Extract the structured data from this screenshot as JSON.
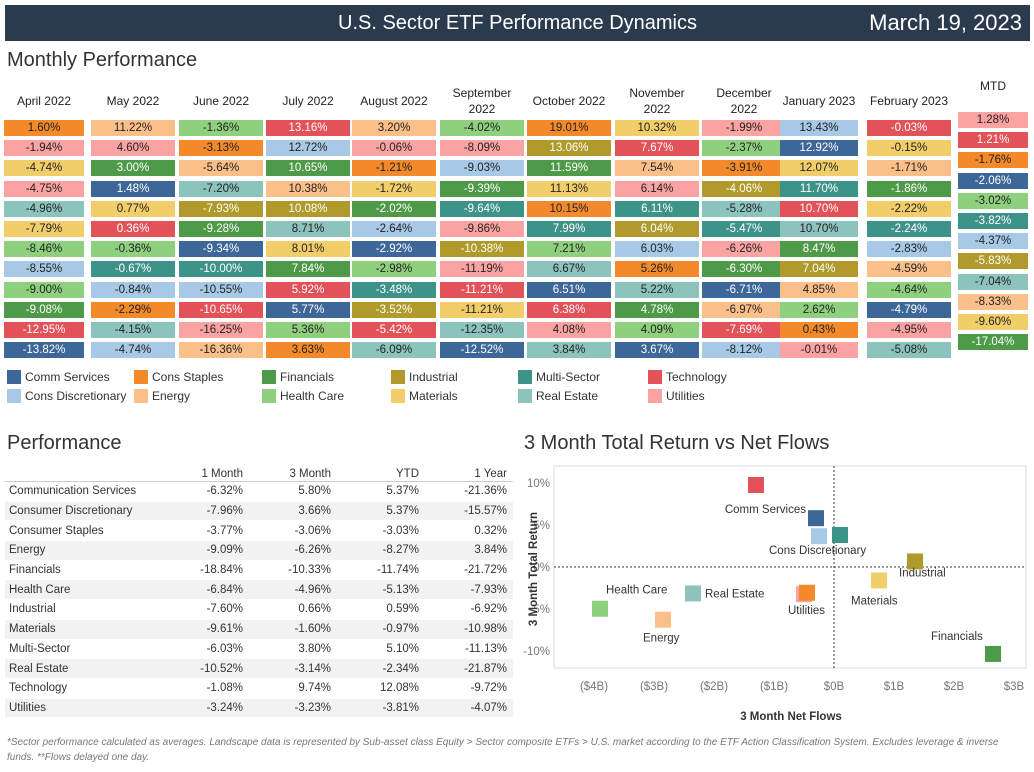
{
  "header": {
    "title": "U.S. Sector ETF Performance Dynamics",
    "date": "March 19, 2023"
  },
  "monthly": {
    "title": "Monthly Performance"
  },
  "colors": {
    "Comm Services": "#3d6699",
    "Cons Discretionary": "#a7c9e6",
    "Cons Staples": "#f28a2b",
    "Energy": "#fbbf8a",
    "Financials": "#4e9a48",
    "Health Care": "#8fd07f",
    "Industrial": "#b19a2c",
    "Materials": "#f2ce6b",
    "Multi-Sector": "#3e9389",
    "Real Estate": "#8cc3bd",
    "Technology": "#e15259",
    "Utilities": "#fba2a2"
  },
  "dark_text": [
    "Comm Services",
    "Financials",
    "Industrial",
    "Multi-Sector",
    "Technology"
  ],
  "months": [
    {
      "label": "April 2022",
      "cells": [
        [
          "1.60%",
          "Cons Staples"
        ],
        [
          "-1.94%",
          "Utilities"
        ],
        [
          "-4.74%",
          "Materials"
        ],
        [
          "-4.75%",
          "Utilities"
        ],
        [
          "-4.96%",
          "Real Estate"
        ],
        [
          "-7.79%",
          "Materials"
        ],
        [
          "-8.46%",
          "Health Care"
        ],
        [
          "-8.55%",
          "Cons Discretionary"
        ],
        [
          "-9.00%",
          "Health Care"
        ],
        [
          "-9.08%",
          "Financials"
        ],
        [
          "-12.95%",
          "Technology"
        ],
        [
          "-13.82%",
          "Comm Services"
        ]
      ]
    },
    {
      "label": "May 2022",
      "cells": [
        [
          "11.22%",
          "Energy"
        ],
        [
          "4.60%",
          "Utilities"
        ],
        [
          "3.00%",
          "Financials"
        ],
        [
          "1.48%",
          "Comm Services"
        ],
        [
          "0.77%",
          "Materials"
        ],
        [
          "0.36%",
          "Technology"
        ],
        [
          "-0.36%",
          "Health Care"
        ],
        [
          "-0.67%",
          "Multi-Sector"
        ],
        [
          "-0.84%",
          "Cons Discretionary"
        ],
        [
          "-2.29%",
          "Cons Staples"
        ],
        [
          "-4.15%",
          "Real Estate"
        ],
        [
          "-4.74%",
          "Cons Discretionary"
        ]
      ]
    },
    {
      "label": "June 2022",
      "cells": [
        [
          "-1.36%",
          "Health Care"
        ],
        [
          "-3.13%",
          "Cons Staples"
        ],
        [
          "-5.64%",
          "Energy"
        ],
        [
          "-7.20%",
          "Real Estate"
        ],
        [
          "-7.93%",
          "Industrial"
        ],
        [
          "-9.28%",
          "Financials"
        ],
        [
          "-9.34%",
          "Comm Services"
        ],
        [
          "-10.00%",
          "Multi-Sector"
        ],
        [
          "-10.55%",
          "Cons Discretionary"
        ],
        [
          "-10.65%",
          "Technology"
        ],
        [
          "-16.25%",
          "Utilities"
        ],
        [
          "-16.36%",
          "Energy"
        ]
      ]
    },
    {
      "label": "July 2022",
      "cells": [
        [
          "13.16%",
          "Technology"
        ],
        [
          "12.72%",
          "Cons Discretionary"
        ],
        [
          "10.65%",
          "Financials"
        ],
        [
          "10.38%",
          "Energy"
        ],
        [
          "10.08%",
          "Industrial"
        ],
        [
          "8.71%",
          "Real Estate"
        ],
        [
          "8.01%",
          "Materials"
        ],
        [
          "7.84%",
          "Financials"
        ],
        [
          "5.92%",
          "Technology"
        ],
        [
          "5.77%",
          "Comm Services"
        ],
        [
          "5.36%",
          "Health Care"
        ],
        [
          "3.63%",
          "Cons Staples"
        ]
      ]
    },
    {
      "label": "August 2022",
      "cells": [
        [
          "3.20%",
          "Energy"
        ],
        [
          "-0.06%",
          "Utilities"
        ],
        [
          "-1.21%",
          "Cons Staples"
        ],
        [
          "-1.72%",
          "Materials"
        ],
        [
          "-2.02%",
          "Financials"
        ],
        [
          "-2.64%",
          "Cons Discretionary"
        ],
        [
          "-2.92%",
          "Comm Services"
        ],
        [
          "-2.98%",
          "Health Care"
        ],
        [
          "-3.48%",
          "Multi-Sector"
        ],
        [
          "-3.52%",
          "Industrial"
        ],
        [
          "-5.42%",
          "Technology"
        ],
        [
          "-6.09%",
          "Real Estate"
        ]
      ]
    },
    {
      "label": "September 2022",
      "cells": [
        [
          "-4.02%",
          "Health Care"
        ],
        [
          "-8.09%",
          "Utilities"
        ],
        [
          "-9.03%",
          "Cons Discretionary"
        ],
        [
          "-9.39%",
          "Financials"
        ],
        [
          "-9.64%",
          "Multi-Sector"
        ],
        [
          "-9.86%",
          "Utilities"
        ],
        [
          "-10.38%",
          "Industrial"
        ],
        [
          "-11.19%",
          "Utilities"
        ],
        [
          "-11.21%",
          "Technology"
        ],
        [
          "-11.21%",
          "Materials"
        ],
        [
          "-12.35%",
          "Real Estate"
        ],
        [
          "-12.52%",
          "Comm Services"
        ]
      ]
    },
    {
      "label": "October 2022",
      "cells": [
        [
          "19.01%",
          "Cons Staples"
        ],
        [
          "13.06%",
          "Industrial"
        ],
        [
          "11.59%",
          "Financials"
        ],
        [
          "11.13%",
          "Materials"
        ],
        [
          "10.15%",
          "Cons Staples"
        ],
        [
          "7.99%",
          "Multi-Sector"
        ],
        [
          "7.21%",
          "Health Care"
        ],
        [
          "6.67%",
          "Real Estate"
        ],
        [
          "6.51%",
          "Comm Services"
        ],
        [
          "6.38%",
          "Technology"
        ],
        [
          "4.08%",
          "Utilities"
        ],
        [
          "3.84%",
          "Real Estate"
        ]
      ]
    },
    {
      "label": "November 2022",
      "cells": [
        [
          "10.32%",
          "Materials"
        ],
        [
          "7.67%",
          "Technology"
        ],
        [
          "7.54%",
          "Energy"
        ],
        [
          "6.14%",
          "Utilities"
        ],
        [
          "6.11%",
          "Multi-Sector"
        ],
        [
          "6.04%",
          "Industrial"
        ],
        [
          "6.03%",
          "Cons Discretionary"
        ],
        [
          "5.26%",
          "Cons Staples"
        ],
        [
          "5.22%",
          "Real Estate"
        ],
        [
          "4.78%",
          "Financials"
        ],
        [
          "4.09%",
          "Health Care"
        ],
        [
          "3.67%",
          "Comm Services"
        ]
      ]
    },
    {
      "label": "December 2022",
      "cells": [
        [
          "-1.99%",
          "Utilities"
        ],
        [
          "-2.37%",
          "Health Care"
        ],
        [
          "-3.91%",
          "Cons Staples"
        ],
        [
          "-4.06%",
          "Industrial"
        ],
        [
          "-5.28%",
          "Real Estate"
        ],
        [
          "-5.47%",
          "Multi-Sector"
        ],
        [
          "-6.26%",
          "Utilities"
        ],
        [
          "-6.30%",
          "Financials"
        ],
        [
          "-6.71%",
          "Comm Services"
        ],
        [
          "-6.97%",
          "Energy"
        ],
        [
          "-7.69%",
          "Technology"
        ],
        [
          "-8.12%",
          "Cons Discretionary"
        ]
      ]
    },
    {
      "label": "January 2023",
      "cells": [
        [
          "13.43%",
          "Cons Discretionary"
        ],
        [
          "12.92%",
          "Comm Services"
        ],
        [
          "12.07%",
          "Materials"
        ],
        [
          "11.70%",
          "Multi-Sector"
        ],
        [
          "10.70%",
          "Technology"
        ],
        [
          "10.70%",
          "Real Estate"
        ],
        [
          "8.47%",
          "Financials"
        ],
        [
          "7.04%",
          "Industrial"
        ],
        [
          "4.85%",
          "Energy"
        ],
        [
          "2.62%",
          "Health Care"
        ],
        [
          "0.43%",
          "Cons Staples"
        ],
        [
          "-0.01%",
          "Utilities"
        ]
      ]
    },
    {
      "label": "February 2023",
      "cells": [
        [
          "-0.03%",
          "Technology"
        ],
        [
          "-0.15%",
          "Materials"
        ],
        [
          "-1.71%",
          "Energy"
        ],
        [
          "-1.86%",
          "Financials"
        ],
        [
          "-2.22%",
          "Materials"
        ],
        [
          "-2.24%",
          "Multi-Sector"
        ],
        [
          "-2.83%",
          "Cons Discretionary"
        ],
        [
          "-4.59%",
          "Energy"
        ],
        [
          "-4.64%",
          "Health Care"
        ],
        [
          "-4.79%",
          "Comm Services"
        ],
        [
          "-4.95%",
          "Utilities"
        ],
        [
          "-5.08%",
          "Real Estate"
        ]
      ]
    },
    {
      "label": "MTD",
      "cells": [
        [
          "1.28%",
          "Utilities"
        ],
        [
          "1.21%",
          "Technology"
        ],
        [
          "-1.76%",
          "Cons Staples"
        ],
        [
          "-2.06%",
          "Comm Services"
        ],
        [
          "-3.02%",
          "Health Care"
        ],
        [
          "-3.82%",
          "Multi-Sector"
        ],
        [
          "-4.37%",
          "Cons Discretionary"
        ],
        [
          "-5.83%",
          "Industrial"
        ],
        [
          "-7.04%",
          "Real Estate"
        ],
        [
          "-8.33%",
          "Energy"
        ],
        [
          "-9.60%",
          "Materials"
        ],
        [
          "-17.04%",
          "Financials"
        ]
      ]
    }
  ],
  "legend": [
    "Comm Services",
    "Cons Staples",
    "Financials",
    "Industrial",
    "Multi-Sector",
    "Technology",
    "Cons Discretionary",
    "Energy",
    "Health Care",
    "Materials",
    "Real Estate",
    "Utilities"
  ],
  "performance": {
    "title": "Performance",
    "columns": [
      "1 Month",
      "3 Month",
      "YTD",
      "1 Year"
    ],
    "rows": [
      [
        "Communication Services",
        "-6.32%",
        "5.80%",
        "5.37%",
        "-21.36%"
      ],
      [
        "Consumer Discretionary",
        "-7.96%",
        "3.66%",
        "5.37%",
        "-15.57%"
      ],
      [
        "Consumer Staples",
        "-3.77%",
        "-3.06%",
        "-3.03%",
        "0.32%"
      ],
      [
        "Energy",
        "-9.09%",
        "-6.26%",
        "-8.27%",
        "3.84%"
      ],
      [
        "Financials",
        "-18.84%",
        "-10.33%",
        "-11.74%",
        "-21.72%"
      ],
      [
        "Health Care",
        "-6.84%",
        "-4.96%",
        "-5.13%",
        "-7.93%"
      ],
      [
        "Industrial",
        "-7.60%",
        "0.66%",
        "0.59%",
        "-6.92%"
      ],
      [
        "Materials",
        "-9.61%",
        "-1.60%",
        "-0.97%",
        "-10.98%"
      ],
      [
        "Multi-Sector",
        "-6.03%",
        "3.80%",
        "5.10%",
        "-11.13%"
      ],
      [
        "Real Estate",
        "-10.52%",
        "-3.14%",
        "-2.34%",
        "-21.87%"
      ],
      [
        "Technology",
        "-1.08%",
        "9.74%",
        "12.08%",
        "-9.72%"
      ],
      [
        "Utilities",
        "-3.24%",
        "-3.23%",
        "-3.81%",
        "-4.07%"
      ]
    ]
  },
  "chart_data": {
    "type": "scatter",
    "title": "3 Month Total Return vs Net Flows",
    "xlabel": "3 Month Net Flows",
    "ylabel": "3 Month Total Return",
    "xlim": [
      -4.2,
      3.1
    ],
    "ylim": [
      -12,
      12
    ],
    "xticks": [
      "($4B)",
      "($3B)",
      "($2B)",
      "($1B)",
      "$0B",
      "$1B",
      "$2B",
      "$3B"
    ],
    "yticks": [
      "10%",
      "5%",
      "0%",
      "-5%",
      "-10%"
    ],
    "points": [
      {
        "name": "Technology",
        "x": -1.3,
        "y": 9.74
      },
      {
        "name": "Comm Services",
        "x": -0.3,
        "y": 5.8
      },
      {
        "name": "Multi-Sector",
        "x": 0.1,
        "y": 3.8
      },
      {
        "name": "Cons Discretionary",
        "x": -0.25,
        "y": 3.66
      },
      {
        "name": "Industrial",
        "x": 1.35,
        "y": 0.66
      },
      {
        "name": "Materials",
        "x": 0.75,
        "y": -1.6
      },
      {
        "name": "Real Estate",
        "x": -2.35,
        "y": -3.14
      },
      {
        "name": "Utilities",
        "x": -0.5,
        "y": -3.23
      },
      {
        "name": "Cons Staples",
        "x": -0.45,
        "y": -3.06
      },
      {
        "name": "Health Care",
        "x": -3.9,
        "y": -4.96
      },
      {
        "name": "Energy",
        "x": -2.85,
        "y": -6.26
      },
      {
        "name": "Financials",
        "x": 2.65,
        "y": -10.33
      }
    ],
    "labels": [
      "Comm Services",
      "Cons Discretionary",
      "Industrial",
      "Materials",
      "Real Estate",
      "Utilities",
      "Health Care",
      "Energy",
      "Financials"
    ]
  },
  "footnote": "*Sector performance calculated as averages. Landscape data is represented by Sub-asset class Equity > Sector composite ETFs > U.S. market according to the ETF Action Classification System. Excludes leverage & inverse funds. **Flows delayed one day."
}
